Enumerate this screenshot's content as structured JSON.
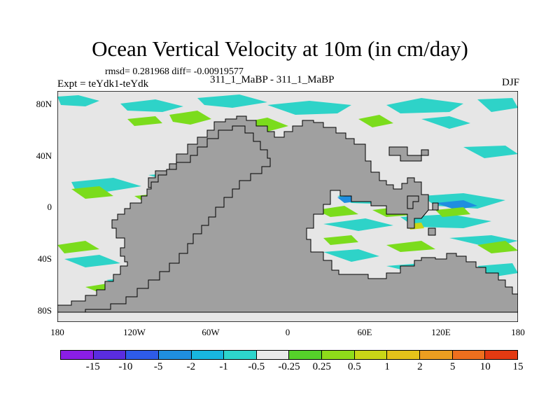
{
  "title": "Ocean Vertical Velocity at 10m (in cm/day)",
  "stats_text": "rmsd= 0.281968  diff= -0.00919577",
  "experiment_label": "Expt = teYdk1-teYdk",
  "case_label": "311_1_MaBP - 311_1_MaBP",
  "season_label": "DJF",
  "y_axis": {
    "ticks": [
      "80N",
      "40N",
      "0",
      "40S",
      "80S"
    ]
  },
  "x_axis": {
    "ticks": [
      "180",
      "120W",
      "60W",
      "0",
      "60E",
      "120E",
      "180"
    ]
  },
  "colorbar": {
    "colors": [
      "#8a1ee6",
      "#5a2de0",
      "#2e5be8",
      "#1f8ee0",
      "#18b6df",
      "#2dd5cc",
      "#e9e9e9",
      "#55d12a",
      "#8fdc1a",
      "#c9d617",
      "#e4c21a",
      "#ec9e20",
      "#ee6f1e",
      "#e43a12"
    ],
    "labels": [
      "-15",
      "-10",
      "-5",
      "-2",
      "-1",
      "-0.5",
      "-0.25",
      "0.25",
      "0.5",
      "1",
      "2",
      "5",
      "10",
      "15"
    ]
  },
  "colors": {
    "land": "#a0a0a0",
    "ocean_background": "#e6e6e6",
    "cyan_anomaly": "#2ed3c8",
    "green_anomaly": "#7bdc1c"
  }
}
